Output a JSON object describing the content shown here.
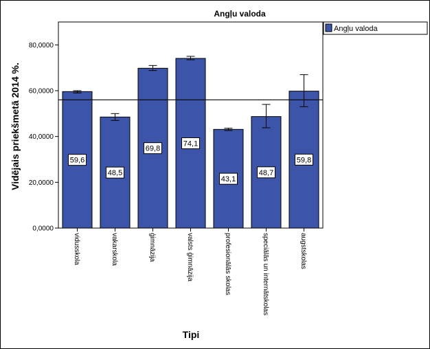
{
  "chart_data": {
    "type": "bar",
    "title": "Angļu valoda",
    "xlabel": "Tipi",
    "ylabel": "Vidējais priekšmetā 2014 %.",
    "ylim": [
      0,
      90
    ],
    "yticks": [
      "0,0000",
      "20,0000",
      "40,0000",
      "60,0000",
      "80,0000"
    ],
    "ytick_values": [
      0,
      20,
      40,
      60,
      80
    ],
    "categories": [
      "vidusskola",
      "vakarskola",
      "ģimnāzija",
      "valsts ģimnāzija",
      "profesionālās skolas",
      "speciālās un internātskolas",
      "augstskolas"
    ],
    "series": [
      {
        "name": "Angļu valoda",
        "values": [
          59.6,
          48.5,
          69.8,
          74.1,
          43.1,
          48.7,
          59.8
        ],
        "labels": [
          "59,6",
          "48,5",
          "69,8",
          "74,1",
          "43,1",
          "48,7",
          "59,8"
        ],
        "err_low": [
          59.0,
          47.0,
          68.8,
          73.5,
          42.6,
          43.8,
          53.0
        ],
        "err_high": [
          60.0,
          50.0,
          71.0,
          75.0,
          43.6,
          54.0,
          67.0
        ]
      }
    ],
    "reference_line": 56,
    "legend": "top-right",
    "color": "#3c55a9",
    "grid": false
  }
}
